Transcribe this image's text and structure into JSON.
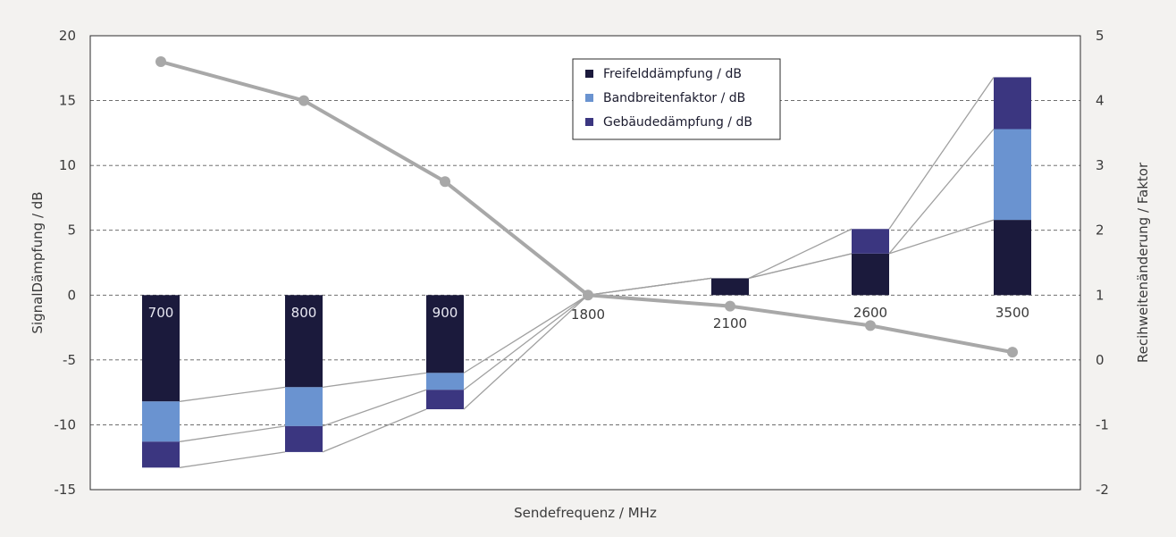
{
  "chart_data": {
    "type": "bar",
    "stacked": true,
    "categories": [
      "700",
      "800",
      "900",
      "1800",
      "2100",
      "2600",
      "3500"
    ],
    "series": [
      {
        "name": "Freifelddämpfung / dB",
        "color": "#1b1a3c",
        "values": [
          -8.2,
          -7.1,
          -6.0,
          0.0,
          1.3,
          3.2,
          5.8
        ]
      },
      {
        "name": "Bandbreitenfaktor / dB",
        "color": "#6a93d0",
        "values": [
          -3.1,
          -3.0,
          -1.3,
          0.0,
          0.0,
          0.0,
          7.0
        ]
      },
      {
        "name": "Gebäudedämpfung / dB",
        "color": "#3b3680",
        "values": [
          -2.0,
          -2.0,
          -1.5,
          0.0,
          0.0,
          1.9,
          4.0
        ]
      }
    ],
    "range_factor": {
      "color": "#a8a8a8",
      "values": [
        4.6,
        4.0,
        2.75,
        1.0,
        0.83,
        0.53,
        0.12
      ]
    },
    "xlabel": "Sendefrequenz / MHz",
    "ylabel": "SignalDämpfung / dB",
    "y2label": "Recihweitenänderung / Faktor",
    "ylim": [
      -15,
      20
    ],
    "y2lim": [
      -2,
      5
    ],
    "yticks": [
      20,
      15,
      10,
      5,
      0,
      -5,
      -10,
      -15
    ],
    "y2ticks": [
      5,
      4,
      3,
      2,
      1,
      0,
      -1,
      -2
    ],
    "grid": true,
    "legend_position": "top-center-right"
  }
}
